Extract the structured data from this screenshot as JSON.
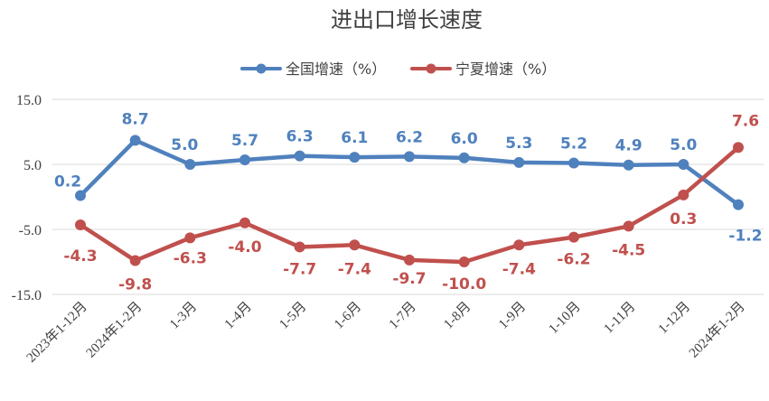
{
  "chart_data": {
    "type": "line",
    "title": "进出口增长速度",
    "categories": [
      "2023年1-12月",
      "2024年1-2月",
      "1-3月",
      "1-4月",
      "1-5月",
      "1-6月",
      "1-7月",
      "1-8月",
      "1-9月",
      "1-10月",
      "1-11月",
      "1-12月",
      "2024年1-2月"
    ],
    "series": [
      {
        "name": "全国增速（%）",
        "color": "#4f81bd",
        "values": [
          0.2,
          8.7,
          5.0,
          5.7,
          6.3,
          6.1,
          6.2,
          6.0,
          5.3,
          5.2,
          4.9,
          5.0,
          -1.2
        ],
        "labels": [
          "0.2",
          "8.7",
          "5.0",
          "5.7",
          "6.3",
          "6.1",
          "6.2",
          "6.0",
          "5.3",
          "5.2",
          "4.9",
          "5.0",
          "-1.2"
        ]
      },
      {
        "name": "宁夏增速（%）",
        "color": "#c0504d",
        "values": [
          -4.3,
          -9.8,
          -6.3,
          -4.0,
          -7.7,
          -7.4,
          -9.7,
          -10.0,
          -7.4,
          -6.2,
          -4.5,
          0.3,
          7.6
        ],
        "labels": [
          "-4.3",
          "-9.8",
          "-6.3",
          "-4.0",
          "-7.7",
          "-7.4",
          "-9.7",
          "-10.0",
          "-7.4",
          "-6.2",
          "-4.5",
          "0.3",
          "7.6"
        ]
      }
    ],
    "y_ticks": [
      "15.0",
      "5.0",
      "-5.0",
      "-15.0"
    ],
    "y_tick_values": [
      15,
      5,
      -5,
      -15
    ],
    "ylim": [
      -15,
      15
    ],
    "grid": true,
    "legend_position": "top-center"
  }
}
